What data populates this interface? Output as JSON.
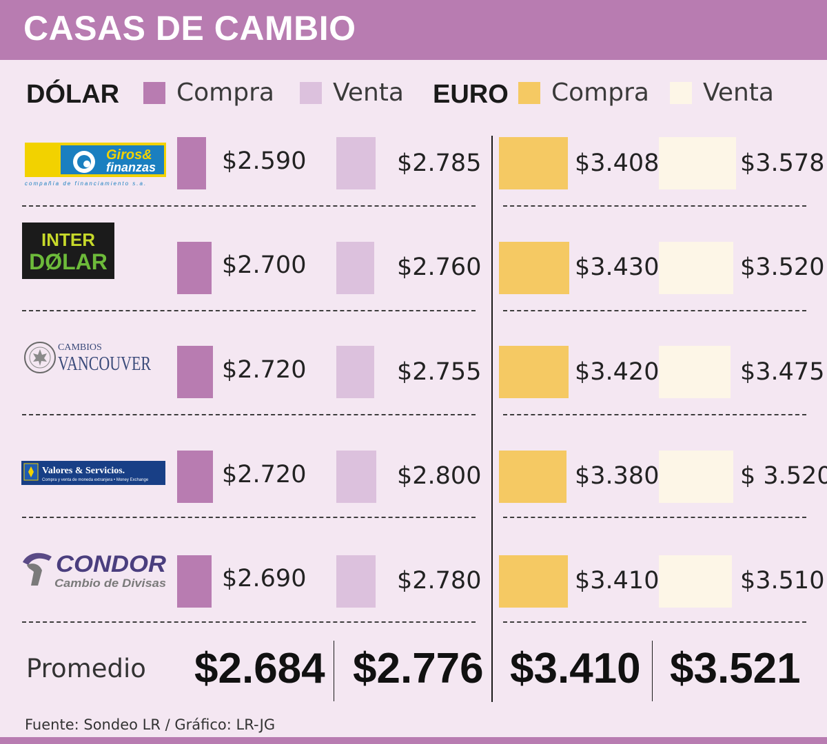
{
  "title": "CASAS DE CAMBIO",
  "legend": {
    "dollar_label": "DÓLAR",
    "euro_label": "EURO",
    "buy_label": "Compra",
    "sell_label": "Venta"
  },
  "colors": {
    "header": "#b87cb1",
    "background": "#f4e7f2",
    "dollar_buy": "#b87cb1",
    "dollar_sell": "#dcc1dd",
    "euro_buy": "#f5c963",
    "euro_sell": "#fdf6e7"
  },
  "chart_data": {
    "type": "table",
    "title": "CASAS DE CAMBIO",
    "columns": [
      "DÓLAR Compra",
      "DÓLAR Venta",
      "EURO Compra",
      "EURO Venta"
    ],
    "rows": [
      {
        "house": "Giros & finanzas",
        "logo": {
          "line1": "Giros&",
          "line2": "finanzas",
          "sub": "compañía de financiamiento s.a."
        },
        "display": [
          "$2.590",
          "$2.785",
          "$3.408",
          "$3.578"
        ],
        "values": [
          2590,
          2785,
          3408,
          3578
        ]
      },
      {
        "house": "Inter Dólar",
        "logo": {
          "line1": "INTER",
          "line2": "DØLAR"
        },
        "display": [
          "$2.700",
          "$2.760",
          "$3.430",
          "$3.520"
        ],
        "values": [
          2700,
          2760,
          3430,
          3520
        ]
      },
      {
        "house": "Cambios Vancouver",
        "logo": {
          "line1": "CAMBIOS",
          "line2": "VANCOUVER"
        },
        "display": [
          "$2.720",
          "$2.755",
          "$3.420",
          "$3.475"
        ],
        "values": [
          2720,
          2755,
          3420,
          3475
        ]
      },
      {
        "house": "Valores & Servicios",
        "logo": {
          "line1": "Valores & Servicios.",
          "line2": "Compra y venta de moneda extranjera • Money Exchange"
        },
        "display": [
          "$2.720",
          "$2.800",
          "$3.380",
          "$ 3.520"
        ],
        "values": [
          2720,
          2800,
          3380,
          3520
        ]
      },
      {
        "house": "Condor Cambio de Divisas",
        "logo": {
          "line1": "CONDOR",
          "line2": "Cambio de Divisas"
        },
        "display": [
          "$2.690",
          "$2.780",
          "$3.410",
          "$3.510"
        ],
        "values": [
          2690,
          2780,
          3410,
          3510
        ]
      }
    ],
    "average": {
      "label": "Promedio",
      "display": [
        "$2.684",
        "$2.776",
        "$3.410",
        "$3.521"
      ],
      "values": [
        2684,
        2776,
        3410,
        3521
      ]
    }
  },
  "source": "Fuente: Sondeo LR / Gráfico: LR-JG"
}
